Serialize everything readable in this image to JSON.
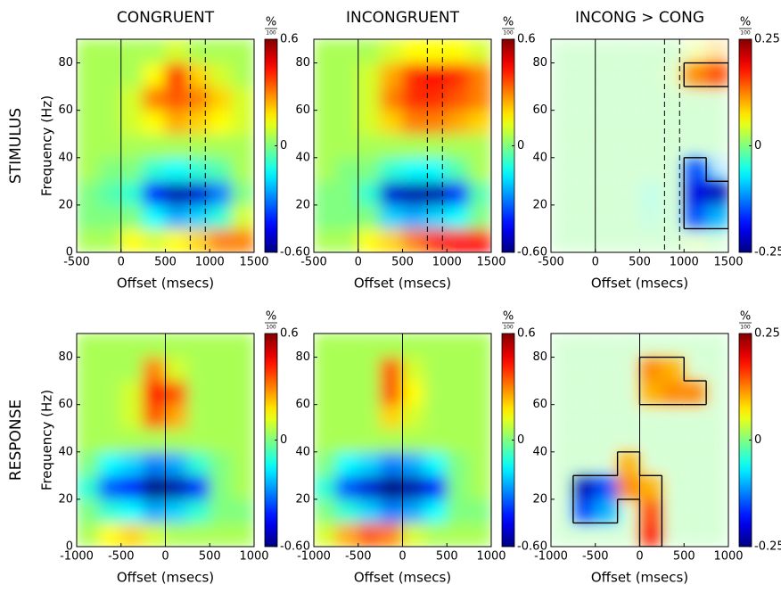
{
  "chart_data": [
    {
      "type": "heatmap",
      "colormap": "jet",
      "title": "CONGRUENT",
      "row_label": "STIMULUS",
      "ylabel": "Frequency (Hz)",
      "xlabel": "Offset (msecs)",
      "xlim": [
        -500,
        1500
      ],
      "xticks": [
        -500,
        0,
        500,
        1000,
        1500
      ],
      "ylim": [
        0,
        90
      ],
      "yticks": [
        0,
        20,
        40,
        60,
        80
      ],
      "xbins": [
        -500,
        -250,
        0,
        250,
        500,
        750,
        1000,
        1250,
        1500
      ],
      "ybins": [
        0,
        10,
        20,
        30,
        40,
        50,
        60,
        70,
        80,
        90
      ],
      "z": [
        [
          0.05,
          0.05,
          0.15,
          0.1,
          0.15,
          0.2,
          0.3,
          0.3
        ],
        [
          0,
          0,
          0,
          -0.15,
          -0.25,
          -0.2,
          -0.1,
          0.1
        ],
        [
          0,
          -0.05,
          -0.1,
          -0.45,
          -0.55,
          -0.5,
          -0.3,
          0
        ],
        [
          0.05,
          0,
          0,
          -0.1,
          -0.15,
          -0.1,
          -0.05,
          0.05
        ],
        [
          0.05,
          0.05,
          0.05,
          0.05,
          0.05,
          0.05,
          0.05,
          0.05
        ],
        [
          0.05,
          0.05,
          0.1,
          0.15,
          0.25,
          0.2,
          0.15,
          0.1
        ],
        [
          0.05,
          0.05,
          0.1,
          0.3,
          0.35,
          0.3,
          0.2,
          0.1
        ],
        [
          0.05,
          0.05,
          0.05,
          0.15,
          0.4,
          0.2,
          0.1,
          0.05
        ],
        [
          0.05,
          0.05,
          0.05,
          0.05,
          0.1,
          0.05,
          0.05,
          0.05
        ]
      ],
      "clim": [
        -0.6,
        0.6
      ],
      "cticks": [
        -0.6,
        0,
        0.6
      ],
      "colorbar_unit": "%",
      "colorbar_unit_denominator": "100",
      "vlines": [
        {
          "x": 0,
          "dashed": false
        },
        {
          "x": 780,
          "dashed": true
        },
        {
          "x": 950,
          "dashed": true
        }
      ]
    },
    {
      "type": "heatmap",
      "colormap": "jet",
      "title": "INCONGRUENT",
      "xlabel": "Offset (msecs)",
      "xlim": [
        -500,
        1500
      ],
      "xticks": [
        -500,
        0,
        500,
        1000,
        1500
      ],
      "ylim": [
        0,
        90
      ],
      "yticks": [
        0,
        20,
        40,
        60,
        80
      ],
      "xbins": [
        -500,
        -250,
        0,
        250,
        500,
        750,
        1000,
        1250,
        1500
      ],
      "ybins": [
        0,
        10,
        20,
        30,
        40,
        50,
        60,
        70,
        80,
        90
      ],
      "z": [
        [
          0.05,
          0.05,
          0.15,
          0.2,
          0.3,
          0.4,
          0.45,
          0.45
        ],
        [
          0,
          0,
          0,
          -0.2,
          -0.25,
          -0.2,
          -0.15,
          0
        ],
        [
          0,
          0,
          -0.1,
          -0.5,
          -0.55,
          -0.55,
          -0.4,
          -0.05
        ],
        [
          0.05,
          0,
          0,
          -0.1,
          -0.15,
          -0.15,
          -0.05,
          0.05
        ],
        [
          0.05,
          0.05,
          0.05,
          0.05,
          0.05,
          0.05,
          0.05,
          0.05
        ],
        [
          0.05,
          0.05,
          0.1,
          0.2,
          0.3,
          0.3,
          0.25,
          0.2
        ],
        [
          0.05,
          0.05,
          0.1,
          0.3,
          0.4,
          0.4,
          0.35,
          0.3
        ],
        [
          0.05,
          0.05,
          0.1,
          0.25,
          0.4,
          0.45,
          0.4,
          0.3
        ],
        [
          0.05,
          0.05,
          0.05,
          0.1,
          0.15,
          0.15,
          0.15,
          0.1
        ]
      ],
      "clim": [
        -0.6,
        0.6
      ],
      "cticks": [
        -0.6,
        0,
        0.6
      ],
      "colorbar_unit": "%",
      "colorbar_unit_denominator": "100",
      "vlines": [
        {
          "x": 0,
          "dashed": false
        },
        {
          "x": 780,
          "dashed": true
        },
        {
          "x": 950,
          "dashed": true
        }
      ]
    },
    {
      "type": "heatmap",
      "colormap": "jet",
      "title": "INCONG > CONG",
      "xlabel": "Offset (msecs)",
      "xlim": [
        -500,
        1500
      ],
      "xticks": [
        -500,
        0,
        500,
        1000,
        1500
      ],
      "ylim": [
        0,
        90
      ],
      "yticks": [
        0,
        20,
        40,
        60,
        80
      ],
      "xbins": [
        -500,
        -250,
        0,
        250,
        500,
        750,
        1000,
        1250,
        1500
      ],
      "ybins": [
        0,
        10,
        20,
        30,
        40,
        50,
        60,
        70,
        80,
        90
      ],
      "z": [
        [
          0,
          0,
          0,
          0,
          0,
          0,
          0.02,
          0
        ],
        [
          0,
          0,
          0,
          0,
          -0.02,
          0,
          -0.15,
          -0.1
        ],
        [
          0,
          0,
          0,
          0,
          -0.03,
          0,
          -0.2,
          -0.22
        ],
        [
          0,
          0,
          0,
          0,
          0,
          0,
          -0.15,
          -0.1
        ],
        [
          0,
          0,
          0,
          0,
          0,
          0,
          0,
          0
        ],
        [
          0,
          0,
          0,
          0,
          0,
          0,
          0,
          0
        ],
        [
          0,
          0,
          0,
          0,
          0,
          0,
          0,
          0
        ],
        [
          0,
          0,
          0,
          0,
          0,
          0.02,
          0.12,
          0.15
        ],
        [
          0,
          0,
          0,
          0,
          0,
          0,
          0.05,
          0.1
        ]
      ],
      "significant": [
        [
          0,
          0,
          0,
          0,
          0,
          0,
          0,
          0
        ],
        [
          0,
          0,
          0,
          0,
          0,
          0,
          1,
          1
        ],
        [
          0,
          0,
          0,
          0,
          0,
          0,
          1,
          1
        ],
        [
          0,
          0,
          0,
          0,
          0,
          0,
          1,
          0
        ],
        [
          0,
          0,
          0,
          0,
          0,
          0,
          0,
          0
        ],
        [
          0,
          0,
          0,
          0,
          0,
          0,
          0,
          0
        ],
        [
          0,
          0,
          0,
          0,
          0,
          0,
          0,
          0
        ],
        [
          0,
          0,
          0,
          0,
          0,
          0,
          1,
          1
        ],
        [
          0,
          0,
          0,
          0,
          0,
          0,
          0,
          0
        ]
      ],
      "clim": [
        -0.25,
        0.25
      ],
      "cticks": [
        -0.25,
        0,
        0.25
      ],
      "colorbar_unit": "%",
      "colorbar_unit_denominator": "100",
      "vlines": [
        {
          "x": 0,
          "dashed": false
        },
        {
          "x": 780,
          "dashed": true
        },
        {
          "x": 950,
          "dashed": true
        }
      ]
    },
    {
      "type": "heatmap",
      "colormap": "jet",
      "row_label": "RESPONSE",
      "ylabel": "Frequency (Hz)",
      "xlabel": "Offset (msecs)",
      "xlim": [
        -1000,
        1000
      ],
      "xticks": [
        -1000,
        -500,
        0,
        500,
        1000
      ],
      "ylim": [
        0,
        90
      ],
      "yticks": [
        0,
        20,
        40,
        60,
        80
      ],
      "xbins": [
        -1000,
        -750,
        -500,
        -250,
        0,
        250,
        500,
        750,
        1000
      ],
      "ybins": [
        0,
        10,
        20,
        30,
        40,
        50,
        60,
        70,
        80,
        90
      ],
      "z": [
        [
          0.05,
          0.15,
          0.2,
          0.1,
          0.05,
          0.05,
          0.05,
          0.05
        ],
        [
          0,
          -0.1,
          -0.15,
          -0.25,
          -0.2,
          -0.1,
          0,
          0
        ],
        [
          -0.1,
          -0.35,
          -0.45,
          -0.6,
          -0.55,
          -0.4,
          0,
          0.05
        ],
        [
          0,
          -0.15,
          -0.2,
          -0.3,
          -0.25,
          -0.1,
          0,
          0.05
        ],
        [
          0.05,
          0.05,
          0.05,
          0.05,
          0.05,
          0.05,
          0.05,
          0.05
        ],
        [
          0.05,
          0.05,
          0.1,
          0.35,
          0.25,
          0.05,
          0.05,
          0.05
        ],
        [
          0.05,
          0.05,
          0.1,
          0.45,
          0.35,
          0.05,
          0.05,
          0.05
        ],
        [
          0.05,
          0.05,
          0.05,
          0.3,
          0.1,
          0.05,
          0.05,
          0.05
        ],
        [
          0.05,
          0.05,
          0.05,
          0.05,
          0.05,
          0.05,
          0.05,
          0.05
        ]
      ],
      "clim": [
        -0.6,
        0.6
      ],
      "cticks": [
        -0.6,
        0,
        0.6
      ],
      "colorbar_unit": "%",
      "colorbar_unit_denominator": "100",
      "vlines": [
        {
          "x": 0,
          "dashed": false
        }
      ]
    },
    {
      "type": "heatmap",
      "colormap": "jet",
      "xlabel": "Offset (msecs)",
      "xlim": [
        -1000,
        1000
      ],
      "xticks": [
        -1000,
        -500,
        0,
        500,
        1000
      ],
      "ylim": [
        0,
        90
      ],
      "yticks": [
        0,
        20,
        40,
        60,
        80
      ],
      "xbins": [
        -1000,
        -750,
        -500,
        -250,
        0,
        250,
        500,
        750,
        1000
      ],
      "ybins": [
        0,
        10,
        20,
        30,
        40,
        50,
        60,
        70,
        80,
        90
      ],
      "z": [
        [
          0.1,
          0.25,
          0.35,
          0.3,
          0.1,
          0.05,
          0.05,
          0.05
        ],
        [
          0,
          -0.1,
          -0.2,
          -0.3,
          -0.25,
          -0.15,
          0,
          0
        ],
        [
          -0.1,
          -0.35,
          -0.5,
          -0.6,
          -0.55,
          -0.45,
          0,
          0.05
        ],
        [
          0,
          -0.15,
          -0.2,
          -0.3,
          -0.25,
          -0.15,
          0,
          0.05
        ],
        [
          0.05,
          0.05,
          0.05,
          0.05,
          0.05,
          0.05,
          0.05,
          0.05
        ],
        [
          0.05,
          0.05,
          0.05,
          0.2,
          0.1,
          0.05,
          0.05,
          0.05
        ],
        [
          0.05,
          0.05,
          0.05,
          0.35,
          0.15,
          0.05,
          0.05,
          0.05
        ],
        [
          0.05,
          0.05,
          0.05,
          0.35,
          0.1,
          0.05,
          0.05,
          0.05
        ],
        [
          0.05,
          0.05,
          0.05,
          0.05,
          0.05,
          0.05,
          0.05,
          0.05
        ]
      ],
      "clim": [
        -0.6,
        0.6
      ],
      "cticks": [
        -0.6,
        0,
        0.6
      ],
      "colorbar_unit": "%",
      "colorbar_unit_denominator": "100",
      "vlines": [
        {
          "x": 0,
          "dashed": false
        }
      ]
    },
    {
      "type": "heatmap",
      "colormap": "jet",
      "xlabel": "Offset (msecs)",
      "xlim": [
        -1000,
        1000
      ],
      "xticks": [
        -1000,
        -500,
        0,
        500,
        1000
      ],
      "ylim": [
        0,
        90
      ],
      "yticks": [
        0,
        20,
        40,
        60,
        80
      ],
      "xbins": [
        -1000,
        -750,
        -500,
        -250,
        0,
        250,
        500,
        750,
        1000
      ],
      "ybins": [
        0,
        10,
        20,
        30,
        40,
        50,
        60,
        70,
        80,
        90
      ],
      "z": [
        [
          0,
          0,
          0,
          0,
          0.18,
          0,
          0,
          0
        ],
        [
          0,
          -0.15,
          -0.1,
          0,
          0.15,
          0,
          0,
          0
        ],
        [
          0,
          -0.22,
          -0.15,
          0.12,
          0.1,
          0,
          0,
          0
        ],
        [
          0,
          0,
          0,
          0.1,
          0,
          0,
          0,
          0
        ],
        [
          0,
          0,
          0,
          0,
          0,
          0,
          0,
          0
        ],
        [
          0,
          0,
          0,
          0,
          0,
          0,
          0,
          0
        ],
        [
          0,
          0,
          0,
          0,
          0.1,
          0.12,
          0.12,
          0
        ],
        [
          0,
          0,
          0,
          0,
          0.12,
          0.1,
          0,
          0
        ],
        [
          0,
          0,
          0,
          0,
          0,
          0,
          0,
          0
        ]
      ],
      "significant": [
        [
          0,
          0,
          0,
          0,
          1,
          0,
          0,
          0
        ],
        [
          0,
          1,
          1,
          0,
          1,
          0,
          0,
          0
        ],
        [
          0,
          1,
          1,
          1,
          1,
          0,
          0,
          0
        ],
        [
          0,
          0,
          0,
          1,
          0,
          0,
          0,
          0
        ],
        [
          0,
          0,
          0,
          0,
          0,
          0,
          0,
          0
        ],
        [
          0,
          0,
          0,
          0,
          0,
          0,
          0,
          0
        ],
        [
          0,
          0,
          0,
          0,
          1,
          1,
          1,
          0
        ],
        [
          0,
          0,
          0,
          0,
          1,
          1,
          0,
          0
        ],
        [
          0,
          0,
          0,
          0,
          0,
          0,
          0,
          0
        ]
      ],
      "clim": [
        -0.25,
        0.25
      ],
      "cticks": [
        -0.25,
        0,
        0.25
      ],
      "colorbar_unit": "%",
      "colorbar_unit_denominator": "100",
      "vlines": [
        {
          "x": 0,
          "dashed": false
        }
      ]
    }
  ]
}
